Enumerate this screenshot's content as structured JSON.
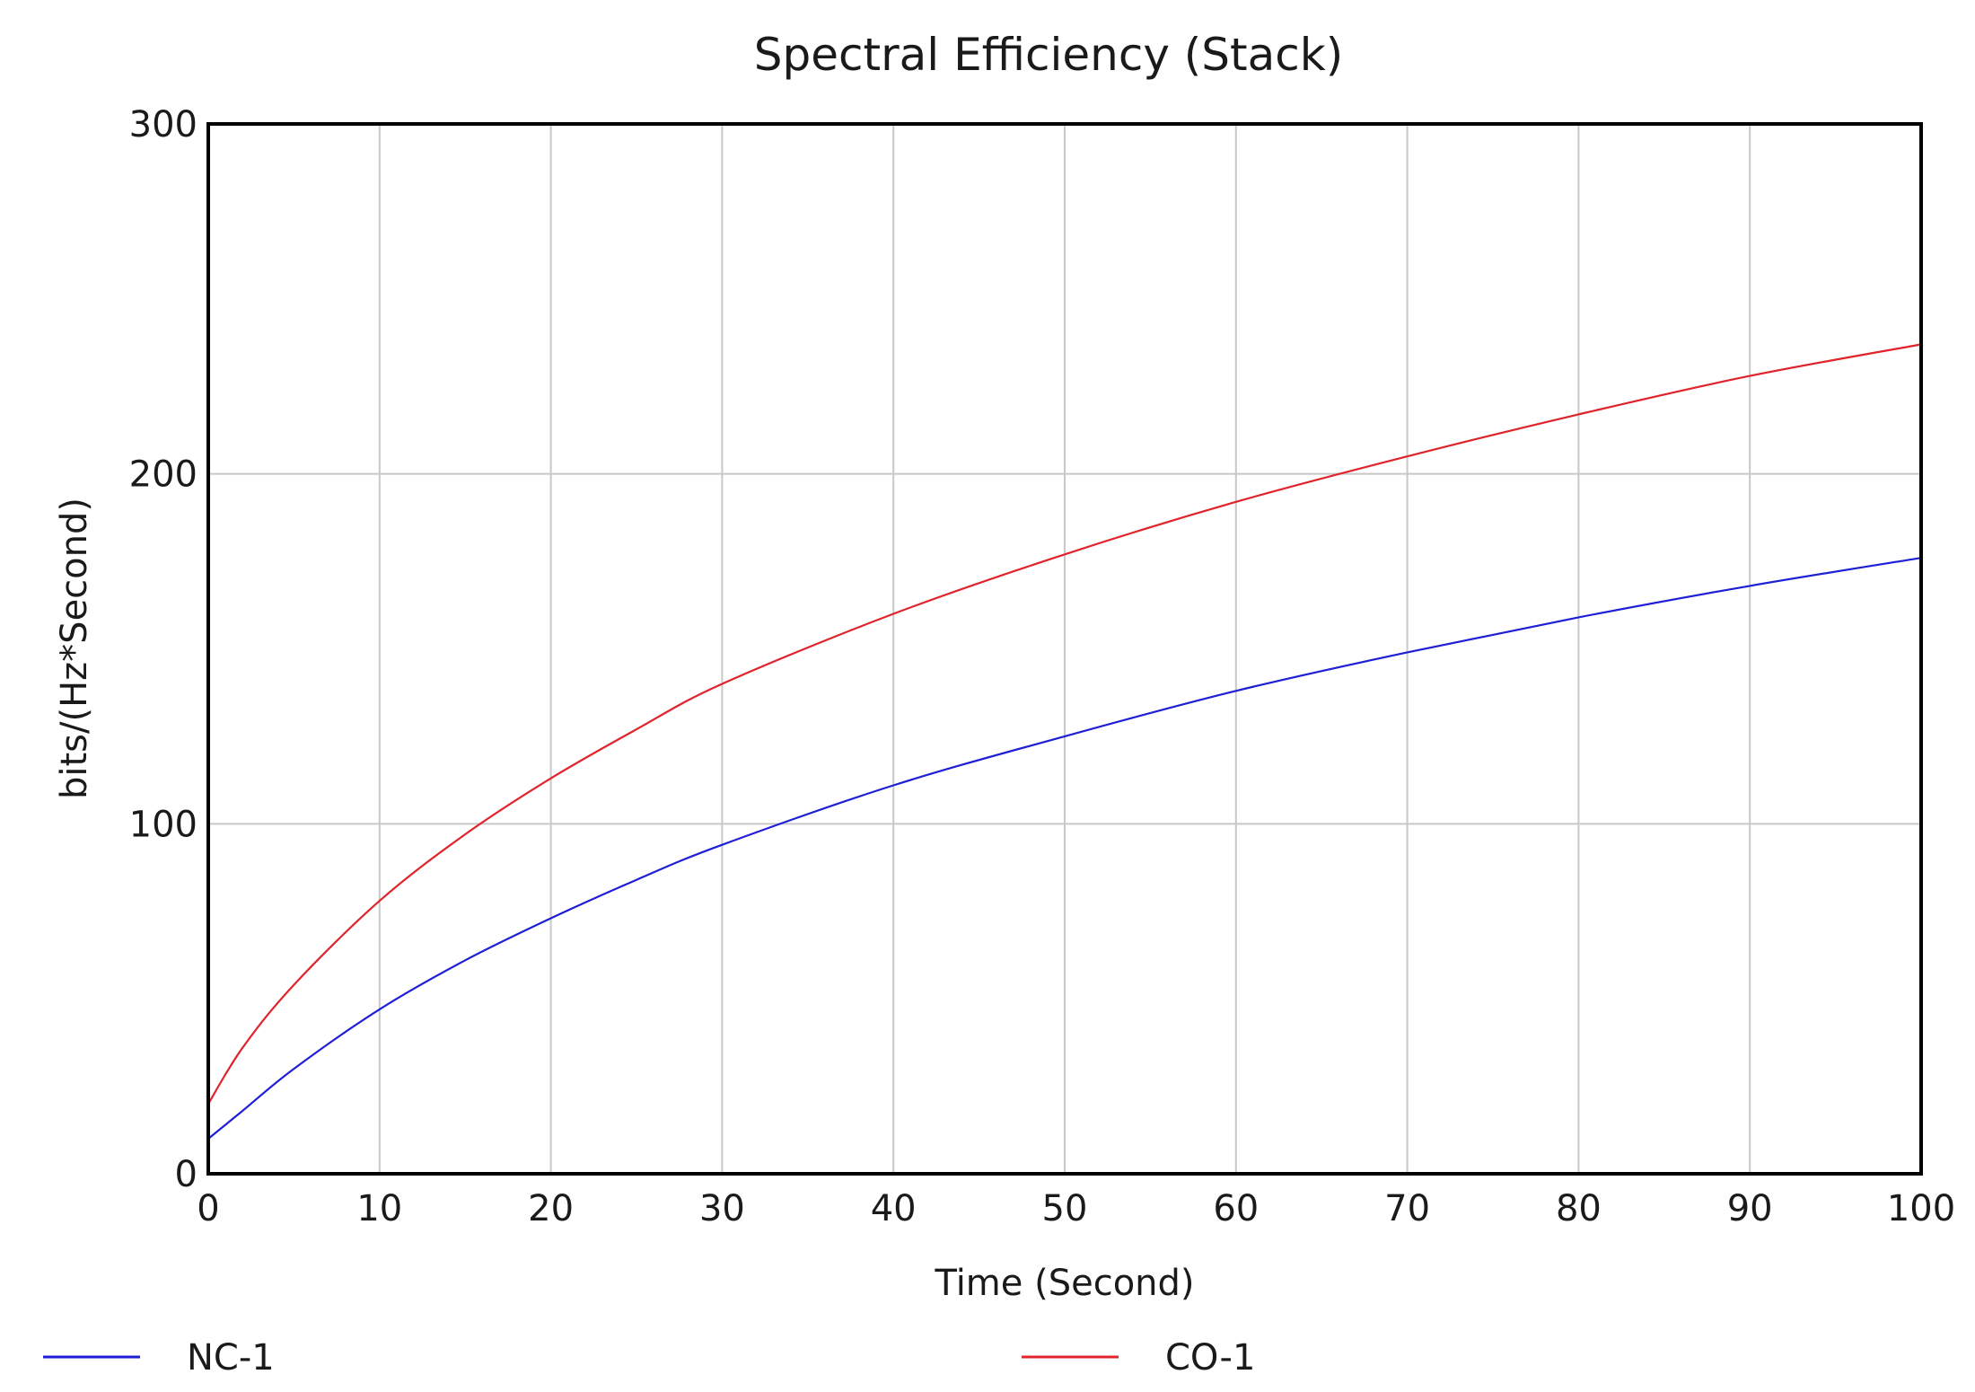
{
  "chart_data": {
    "type": "line",
    "title": "Spectral Efficiency (Stack)",
    "xlabel": "Time (Second)",
    "ylabel": "bits/(Hz*Second)",
    "xlim": [
      0,
      100
    ],
    "ylim": [
      0,
      300
    ],
    "x_ticks": [
      "0",
      "10",
      "20",
      "30",
      "40",
      "50",
      "60",
      "70",
      "80",
      "90",
      "100"
    ],
    "y_ticks": [
      "0",
      "100",
      "200",
      "300"
    ],
    "grid": true,
    "legend_position": "bottom",
    "x": [
      0,
      2,
      5,
      10,
      15,
      20,
      25,
      30,
      40,
      50,
      60,
      70,
      80,
      90,
      100
    ],
    "series": [
      {
        "name": "NC-1",
        "color": "#1f1fd6",
        "values": [
          10,
          18,
          30,
          47,
          61,
          73,
          84,
          94,
          111,
          125,
          138,
          149,
          159,
          168,
          176
        ]
      },
      {
        "name": "CO-1",
        "color": "#e0242c",
        "values": [
          20,
          36,
          54,
          78,
          97,
          113,
          127,
          140,
          160,
          177,
          192,
          205,
          217,
          228,
          237
        ]
      }
    ]
  }
}
